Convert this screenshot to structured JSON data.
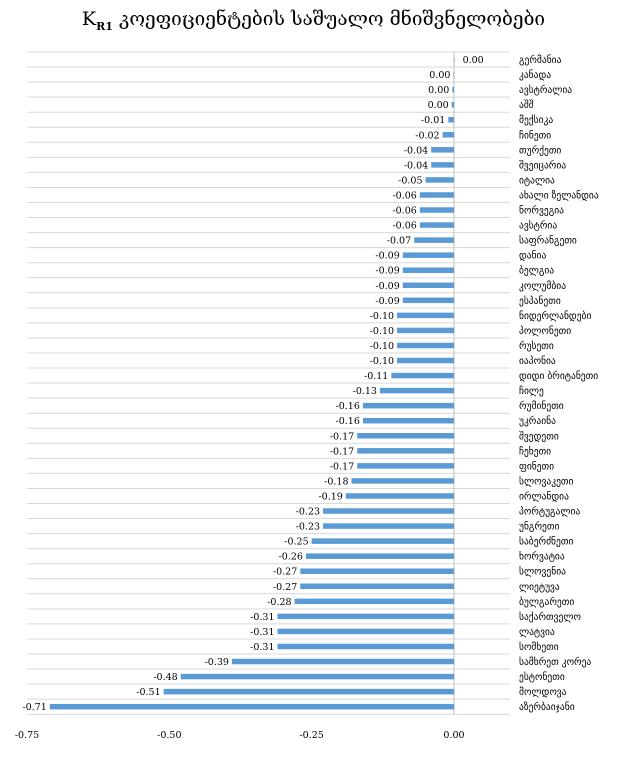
{
  "chart_data": {
    "type": "bar",
    "orientation": "horizontal",
    "title_main": "K",
    "title_sub": "R1",
    "title_rest": " კოეფიციენტების საშუალო მნიშვნელობები",
    "categories": [
      "გერმანია",
      "კანადა",
      "ავსტრალია",
      "აშშ",
      "მექსიკა",
      "ჩინეთი",
      "თურქეთი",
      "შვეიცარია",
      "იტალია",
      "ახალი ზელანდია",
      "ნორვეგია",
      "ავსტრია",
      "საფრანგეთი",
      "დანია",
      "ბელგია",
      "კოლუმბია",
      "ესპანეთი",
      "ნიდერლანდები",
      "პოლონეთი",
      "რუსეთი",
      "იაპონია",
      "დიდი ბრიტანეთი",
      "ჩილე",
      "რუმინეთი",
      "უკრაინა",
      "შვედეთი",
      "ჩეხეთი",
      "ფინეთი",
      "სლოვაკეთი",
      "ირლანდია",
      "პორტუგალია",
      "უნგრეთი",
      "საბერძნეთი",
      "ხორვატია",
      "სლოვენია",
      "ლიეტუვა",
      "ბულგარეთი",
      "საქართველო",
      "ლატვია",
      "სომხეთი",
      "სამხრეთ კორეა",
      "ესტონეთი",
      "მოლდოვა",
      "აზერბაიჯანი"
    ],
    "values": [
      0.001,
      -0.001,
      -0.003,
      -0.004,
      -0.01,
      -0.02,
      -0.04,
      -0.04,
      -0.05,
      -0.06,
      -0.06,
      -0.06,
      -0.07,
      -0.09,
      -0.09,
      -0.09,
      -0.09,
      -0.1,
      -0.1,
      -0.1,
      -0.1,
      -0.11,
      -0.13,
      -0.16,
      -0.16,
      -0.17,
      -0.17,
      -0.17,
      -0.18,
      -0.19,
      -0.23,
      -0.23,
      -0.25,
      -0.26,
      -0.27,
      -0.27,
      -0.28,
      -0.31,
      -0.31,
      -0.31,
      -0.39,
      -0.48,
      -0.51,
      -0.71
    ],
    "data_labels": [
      "0.00",
      "0.00",
      "0.00",
      "0.00",
      "-0.01",
      "-0.02",
      "-0.04",
      "-0.04",
      "-0.05",
      "-0.06",
      "-0.06",
      "-0.06",
      "-0.07",
      "-0.09",
      "-0.09",
      "-0.09",
      "-0.09",
      "-0.10",
      "-0.10",
      "-0.10",
      "-0.10",
      "-0.11",
      "-0.13",
      "-0.16",
      "-0.16",
      "-0.17",
      "-0.17",
      "-0.17",
      "-0.18",
      "-0.19",
      "-0.23",
      "-0.23",
      "-0.25",
      "-0.26",
      "-0.27",
      "-0.27",
      "-0.28",
      "-0.31",
      "-0.31",
      "-0.31",
      "-0.39",
      "-0.48",
      "-0.51",
      "-0.71"
    ],
    "xticks": [
      -0.75,
      -0.5,
      -0.25,
      0.0
    ],
    "xtick_labels": [
      "-0.75",
      "-0.50",
      "-0.25",
      "0.00"
    ],
    "xlim": [
      -0.75,
      0.0
    ],
    "grid": true,
    "bar_color": "#5b9bd5",
    "grid_color": "#d9d9d9"
  }
}
